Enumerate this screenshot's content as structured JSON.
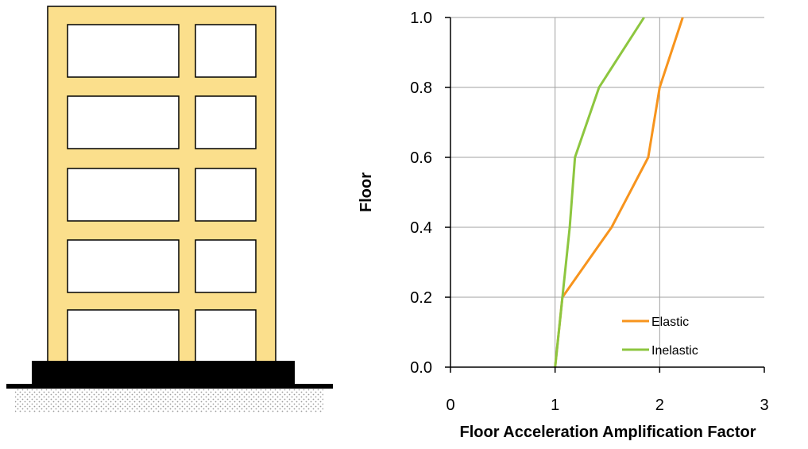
{
  "chart_data": {
    "type": "line",
    "xlabel": "Floor Acceleration Amplification Factor",
    "ylabel": "Floor",
    "xlim": [
      0,
      3
    ],
    "ylim": [
      0,
      1
    ],
    "xticks": [
      0,
      1,
      2,
      3
    ],
    "yticks": [
      0.0,
      0.2,
      0.4,
      0.6,
      0.8,
      1.0
    ],
    "xtick_labels": [
      "0",
      "1",
      "2",
      "3"
    ],
    "ytick_labels": [
      "0.0",
      "0.2",
      "0.4",
      "0.6",
      "0.8",
      "1.0"
    ],
    "grid": true,
    "legend_position": "bottom-right",
    "series": [
      {
        "name": "Elastic",
        "color": "#F7941D",
        "x": [
          1.0,
          1.07,
          1.54,
          1.89,
          2.0,
          2.22
        ],
        "y": [
          0.0,
          0.2,
          0.4,
          0.6,
          0.8,
          1.0
        ]
      },
      {
        "name": "Inelastic",
        "color": "#8DC63F",
        "x": [
          1.0,
          1.07,
          1.14,
          1.19,
          1.42,
          1.85
        ],
        "y": [
          0.0,
          0.2,
          0.4,
          0.6,
          0.8,
          1.0
        ]
      }
    ]
  },
  "illustration": {
    "frame_color": "#FBDF8C",
    "base_color": "#000000",
    "storeys": 5,
    "bays": 2
  }
}
